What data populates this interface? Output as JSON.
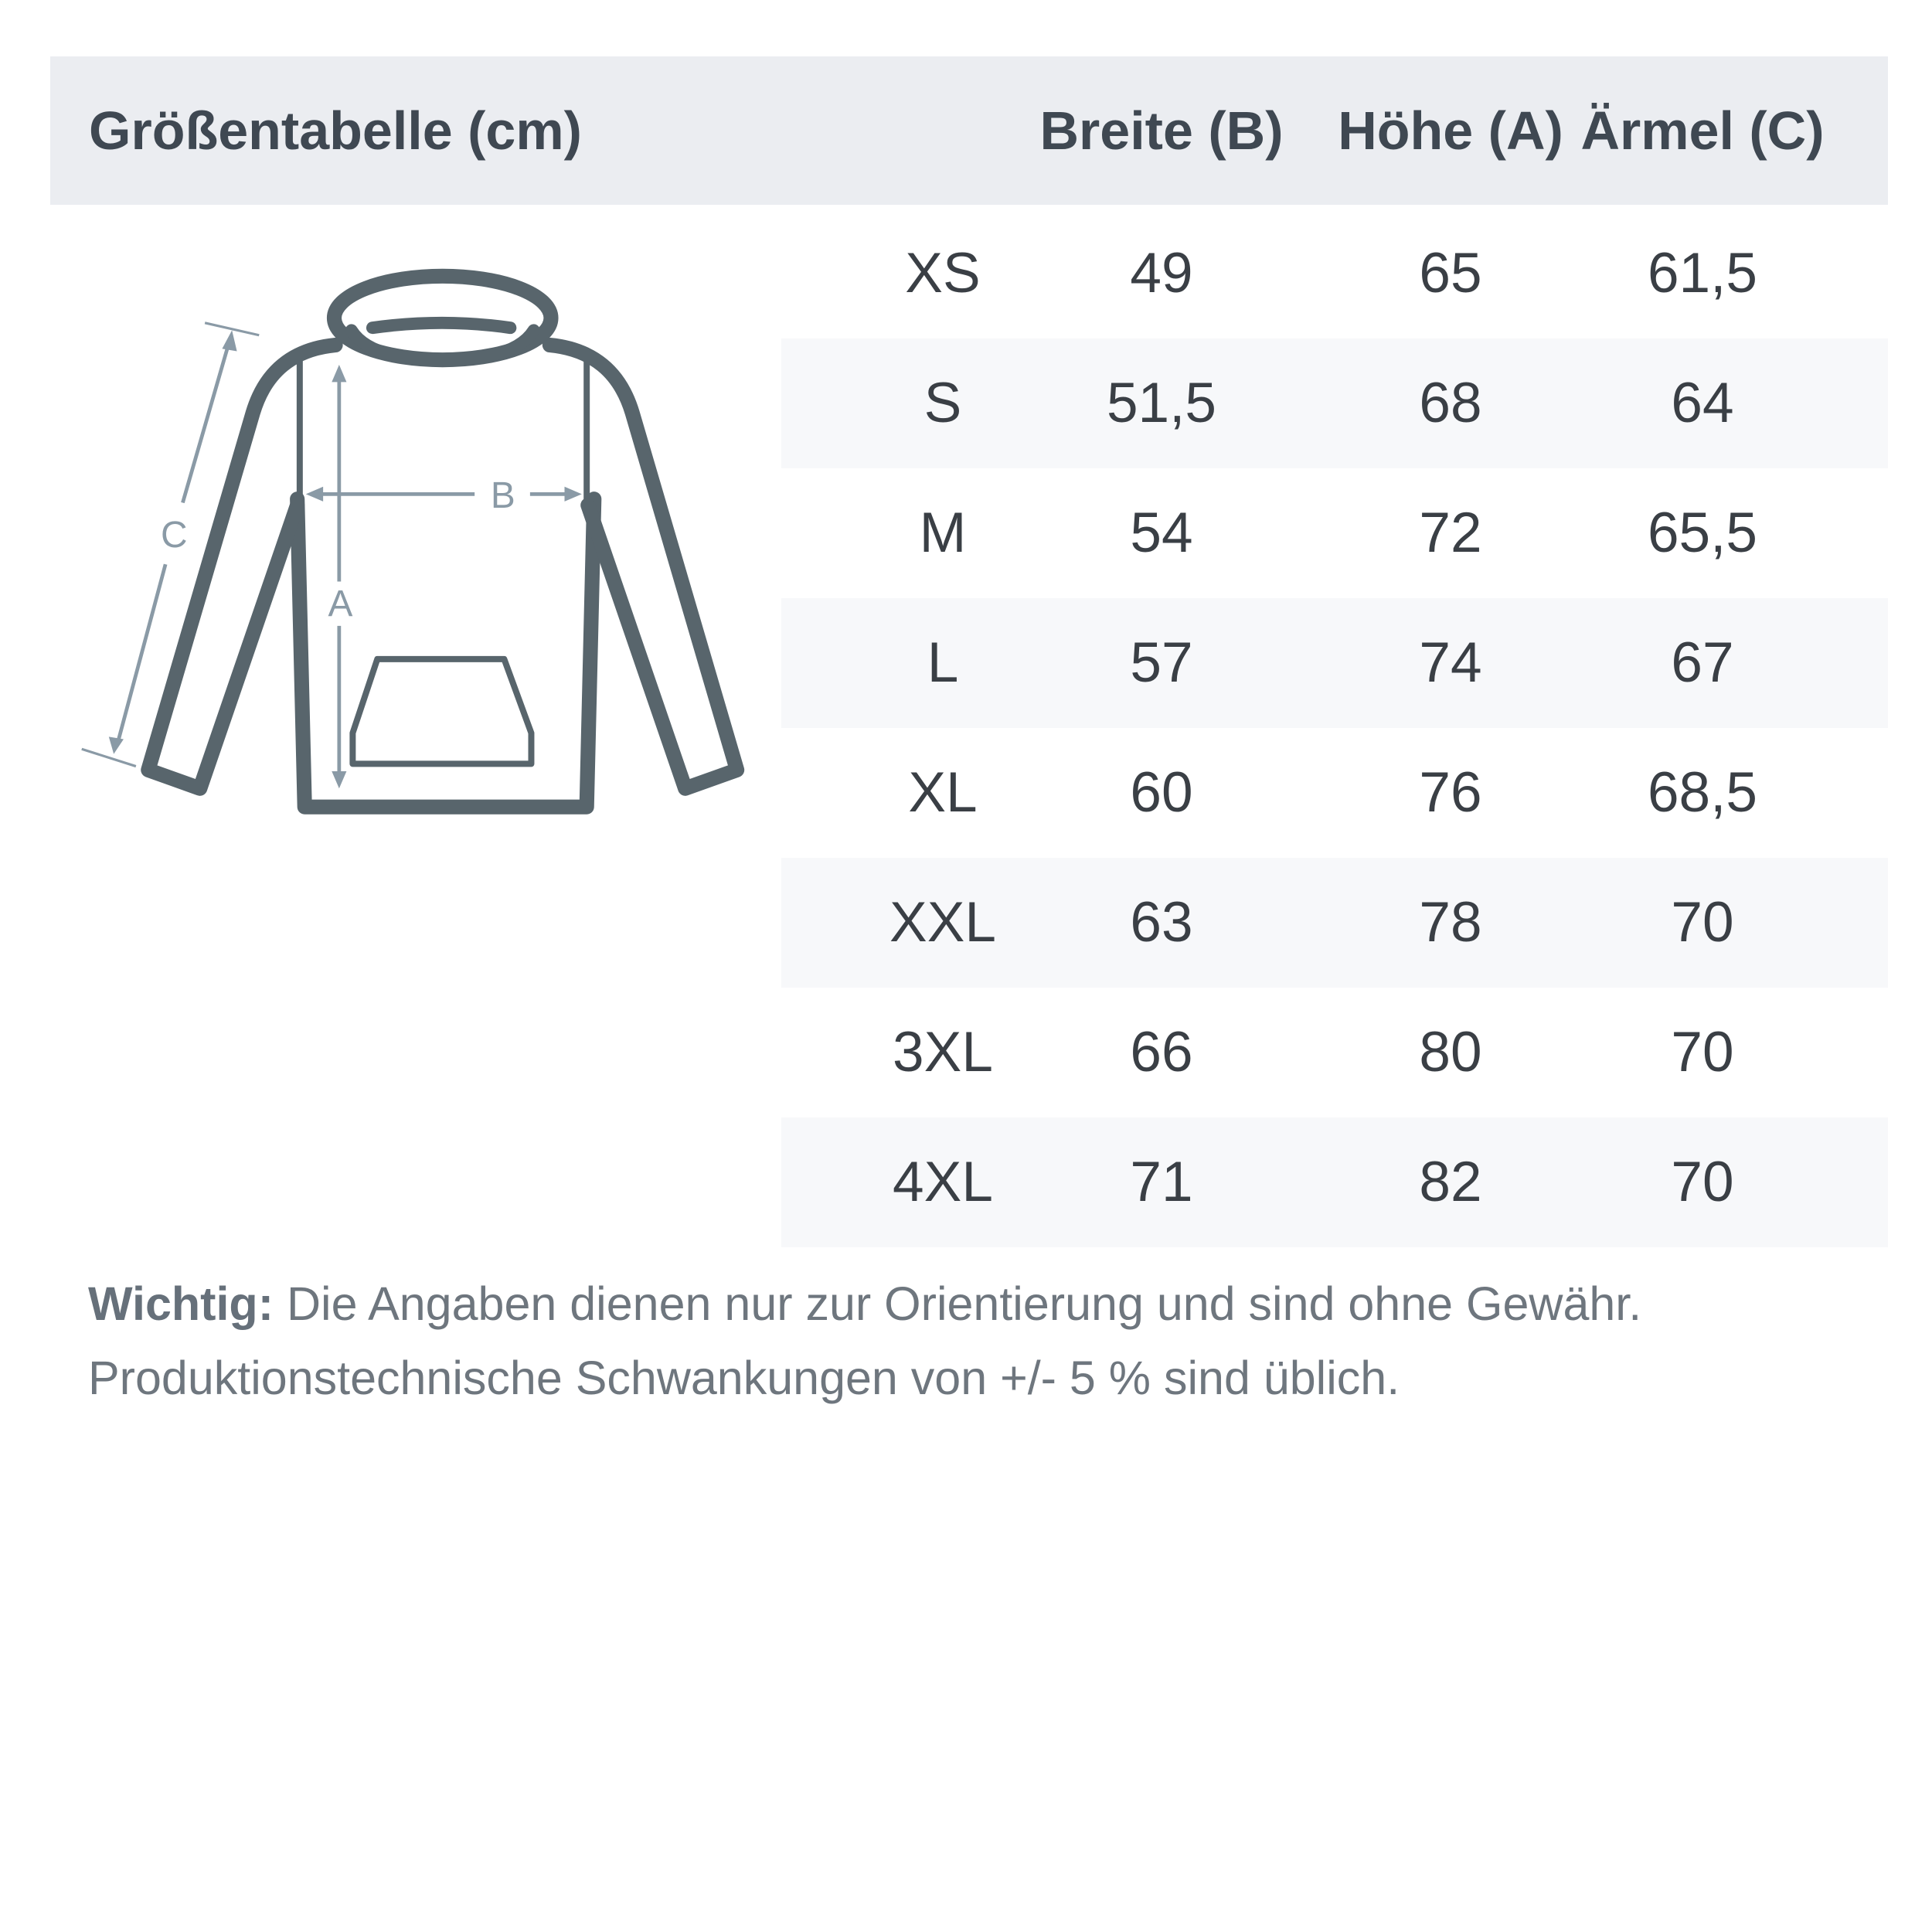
{
  "header": {
    "title": "Größentabelle (cm)",
    "columns": [
      "Breite (B)",
      "Höhe (A)",
      "Ärmel (C)"
    ]
  },
  "diagram": {
    "labels": {
      "width": "B",
      "height": "A",
      "sleeve": "C"
    },
    "line_color": "#58656c",
    "arrow_color": "#8a9aa6"
  },
  "rows": [
    {
      "size": "XS",
      "breite": "49",
      "hoehe": "65",
      "aermel": "61,5"
    },
    {
      "size": "S",
      "breite": "51,5",
      "hoehe": "68",
      "aermel": "64"
    },
    {
      "size": "M",
      "breite": "54",
      "hoehe": "72",
      "aermel": "65,5"
    },
    {
      "size": "L",
      "breite": "57",
      "hoehe": "74",
      "aermel": "67"
    },
    {
      "size": "XL",
      "breite": "60",
      "hoehe": "76",
      "aermel": "68,5"
    },
    {
      "size": "XXL",
      "breite": "63",
      "hoehe": "78",
      "aermel": "70"
    },
    {
      "size": "3XL",
      "breite": "66",
      "hoehe": "80",
      "aermel": "70"
    },
    {
      "size": "4XL",
      "breite": "71",
      "hoehe": "82",
      "aermel": "70"
    }
  ],
  "note": {
    "bold": "Wichtig:",
    "line1": " Die Angaben dienen nur zur Orientierung und sind ohne Gewähr.",
    "line2": "Produktionstechnische Schwankungen von +/- 5 % sind üblich."
  }
}
